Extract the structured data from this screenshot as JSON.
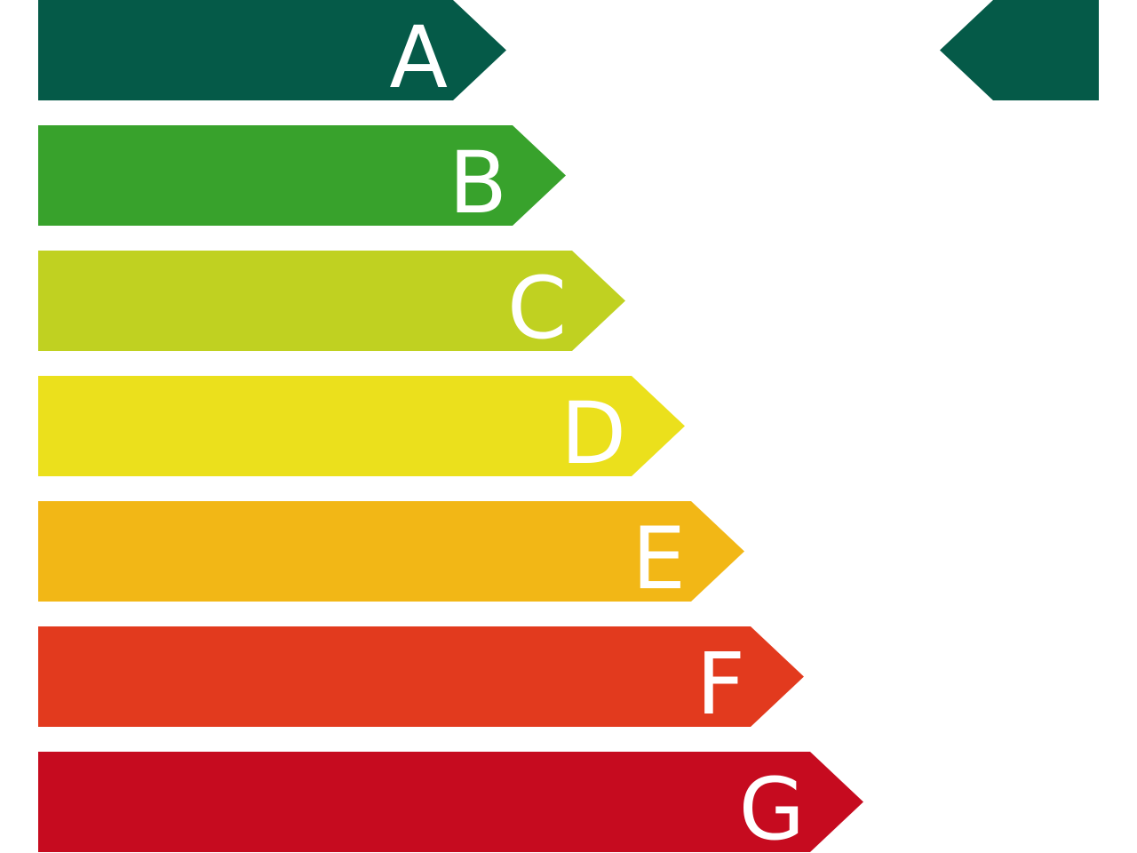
{
  "classes": [
    {
      "letter": "A",
      "color": "#055a48"
    },
    {
      "letter": "B",
      "color": "#38a22c"
    },
    {
      "letter": "C",
      "color": "#c0d121"
    },
    {
      "letter": "D",
      "color": "#ebe01c"
    },
    {
      "letter": "E",
      "color": "#f2b716"
    },
    {
      "letter": "F",
      "color": "#e23a1e"
    },
    {
      "letter": "G",
      "color": "#c60b1f"
    }
  ],
  "rating_indicator": {
    "class": "A",
    "color": "#055a48"
  }
}
